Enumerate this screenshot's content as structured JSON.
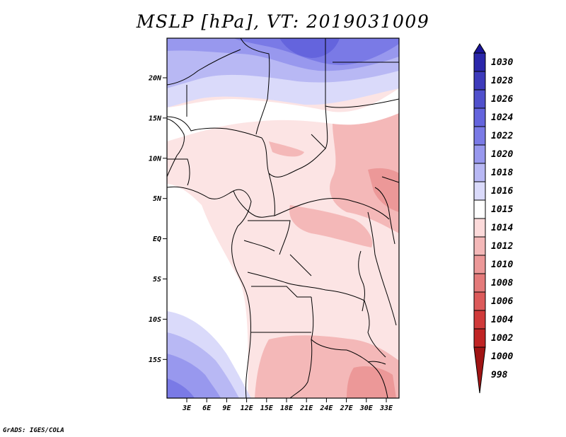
{
  "title": "MSLP [hPa], VT: 2019031009",
  "credit": "GrADS: IGES/COLA",
  "axes": {
    "lat_labels": [
      "20N",
      "15N",
      "10N",
      "5N",
      "EQ",
      "5S",
      "10S",
      "15S"
    ],
    "lon_labels": [
      "3E",
      "6E",
      "9E",
      "12E",
      "15E",
      "18E",
      "21E",
      "24E",
      "27E",
      "30E",
      "33E"
    ]
  },
  "colorbar": {
    "levels": [
      "1030",
      "1028",
      "1026",
      "1024",
      "1022",
      "1020",
      "1018",
      "1016",
      "1015",
      "1014",
      "1012",
      "1010",
      "1008",
      "1006",
      "1004",
      "1002",
      "1000",
      "998"
    ],
    "colors": [
      "#1a1499",
      "#2a26aa",
      "#3d3abb",
      "#5050cc",
      "#6464dd",
      "#7a7ae6",
      "#9898ee",
      "#b8b8f4",
      "#dadafa",
      "#ffffff",
      "#fcdada",
      "#f4b8b8",
      "#ec9898",
      "#e47a7a",
      "#dc5a5a",
      "#d03a3a",
      "#c02424",
      "#a01414"
    ]
  }
}
